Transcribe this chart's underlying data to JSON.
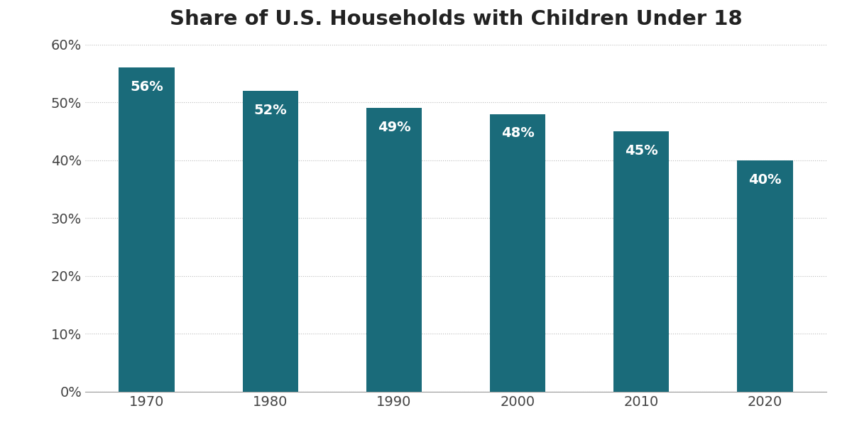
{
  "title": "Share of U.S. Households with Children Under 18",
  "categories": [
    "1970",
    "1980",
    "1990",
    "2000",
    "2010",
    "2020"
  ],
  "values": [
    56,
    52,
    49,
    48,
    45,
    40
  ],
  "bar_color": "#1a6b7a",
  "label_color": "#ffffff",
  "label_fontsize": 14,
  "title_fontsize": 21,
  "tick_fontsize": 14,
  "ylim": [
    0,
    60
  ],
  "yticks": [
    0,
    10,
    20,
    30,
    40,
    50,
    60
  ],
  "background_color": "#ffffff",
  "grid_color": "#bbbbbb",
  "bar_width": 0.45,
  "title_color": "#222222"
}
